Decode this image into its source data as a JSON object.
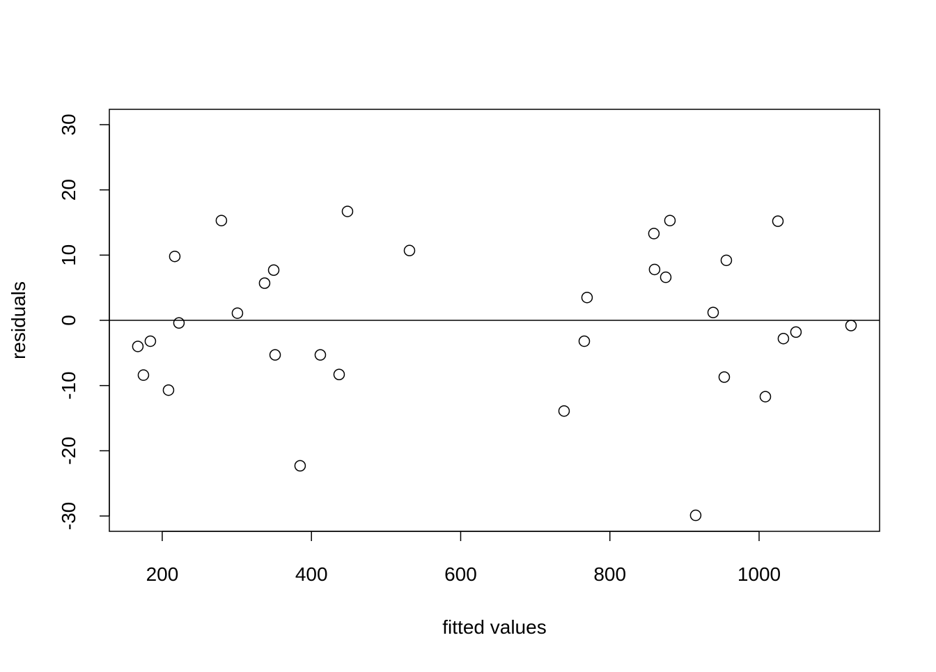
{
  "chart_data": {
    "type": "scatter",
    "x_label": "fitted values",
    "y_label": "residuals",
    "x": [
      167.3,
      174.8,
      184.1,
      208.4,
      216.8,
      222.4,
      279.3,
      300.8,
      337.2,
      349.4,
      351.3,
      384.8,
      411.9,
      437.1,
      448.3,
      531.4,
      738.6,
      765.7,
      769.4,
      859.0,
      859.9,
      874.9,
      880.5,
      915.0,
      938.4,
      953.3,
      956.1,
      1008.4,
      1025.2,
      1032.6,
      1049.4,
      1123.2
    ],
    "values": [
      -4.0,
      -8.4,
      -3.2,
      -10.7,
      9.8,
      -0.4,
      15.3,
      1.1,
      5.7,
      7.7,
      -5.3,
      -22.3,
      -5.3,
      -8.3,
      16.7,
      10.7,
      -13.9,
      -3.2,
      3.5,
      13.3,
      7.8,
      6.6,
      15.3,
      -29.9,
      1.2,
      -8.7,
      9.2,
      -11.7,
      15.2,
      -2.8,
      -1.8,
      -0.8
    ],
    "color": "#000000",
    "hline": 0,
    "xlim": [
      129.1,
      1161.5
    ],
    "ylim": [
      -32.35,
      32.35
    ],
    "xticks": [
      200,
      400,
      600,
      800,
      1000
    ],
    "yticks": [
      -30,
      -20,
      -10,
      0,
      10,
      20,
      30
    ]
  }
}
